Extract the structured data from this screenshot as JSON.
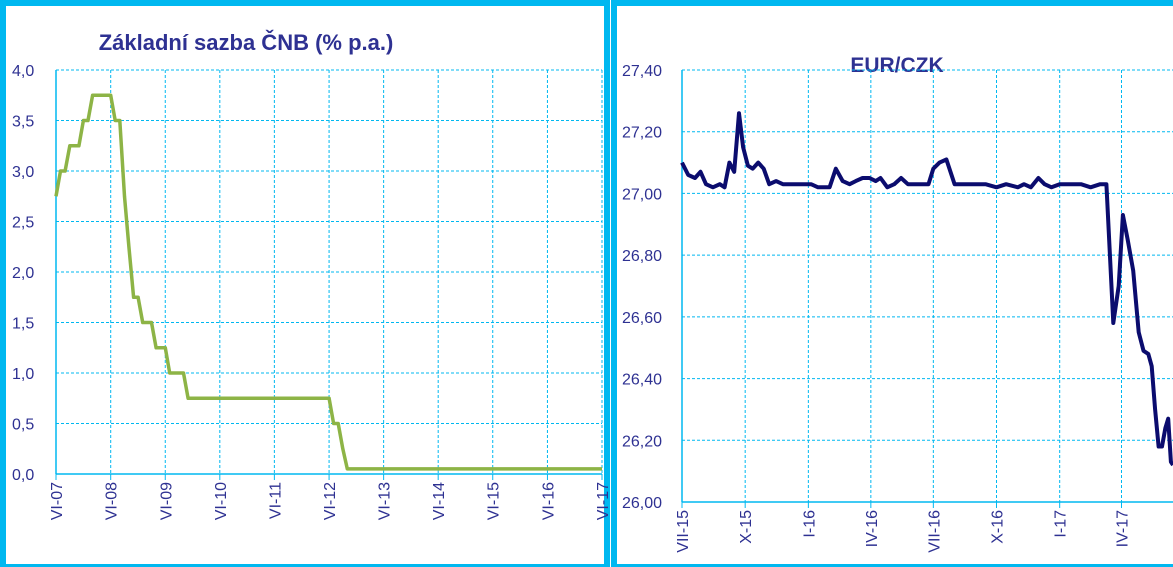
{
  "colors": {
    "border": "#00b8f0",
    "grid": "#00b8f0",
    "title": "#2e3192",
    "tick_text": "#2e3192",
    "series_left": "#8db446",
    "series_right": "#0b0c6e"
  },
  "chart_data": [
    {
      "type": "line",
      "title": "Základní sazba ČNB (% p.a.)",
      "xlabel": "",
      "ylabel": "",
      "ylim": [
        0,
        4
      ],
      "yticks": [
        0,
        0.5,
        1,
        1.5,
        2,
        2.5,
        3,
        3.5,
        4
      ],
      "ytick_labels": [
        "0,0",
        "0,5",
        "1,0",
        "1,5",
        "2,0",
        "2,5",
        "3,0",
        "3,5",
        "4,0"
      ],
      "xlim": [
        "2007-06",
        "2017-06"
      ],
      "xtick_dates": [
        "2007-06",
        "2008-06",
        "2009-06",
        "2010-06",
        "2011-06",
        "2012-06",
        "2013-06",
        "2014-06",
        "2015-06",
        "2016-06",
        "2017-06"
      ],
      "xtick_labels": [
        "VI-07",
        "VI-08",
        "VI-09",
        "VI-10",
        "VI-11",
        "VI-12",
        "VI-13",
        "VI-14",
        "VI-15",
        "VI-16",
        "VI-17"
      ],
      "grid": true,
      "series": [
        {
          "x": [
            "2007-06",
            "2007-07",
            "2007-08",
            "2007-09",
            "2007-10",
            "2007-11",
            "2007-12",
            "2008-01",
            "2008-02",
            "2008-03",
            "2008-04",
            "2008-05",
            "2008-06",
            "2008-07",
            "2008-08",
            "2008-09",
            "2008-10",
            "2008-11",
            "2008-12",
            "2009-01",
            "2009-02",
            "2009-03",
            "2009-04",
            "2009-05",
            "2009-06",
            "2009-07",
            "2009-08",
            "2009-09",
            "2009-10",
            "2009-11",
            "2009-12",
            "2010-01",
            "2010-02",
            "2010-03",
            "2010-04",
            "2010-05",
            "2010-06",
            "2011-06",
            "2012-06",
            "2012-07",
            "2012-08",
            "2012-09",
            "2012-10",
            "2012-11",
            "2013-06",
            "2014-06",
            "2015-06",
            "2016-06",
            "2017-06"
          ],
          "values": [
            2.75,
            3.0,
            3.0,
            3.25,
            3.25,
            3.25,
            3.5,
            3.5,
            3.75,
            3.75,
            3.75,
            3.75,
            3.75,
            3.5,
            3.5,
            2.75,
            2.25,
            1.75,
            1.75,
            1.5,
            1.5,
            1.5,
            1.25,
            1.25,
            1.25,
            1.0,
            1.0,
            1.0,
            1.0,
            0.75,
            0.75,
            0.75,
            0.75,
            0.75,
            0.75,
            0.75,
            0.75,
            0.75,
            0.75,
            0.5,
            0.5,
            0.25,
            0.05,
            0.05,
            0.05,
            0.05,
            0.05,
            0.05,
            0.05
          ]
        }
      ]
    },
    {
      "type": "line",
      "title": "EUR/CZK",
      "xlabel": "",
      "ylabel": "",
      "ylim": [
        26.0,
        27.4
      ],
      "yticks": [
        26.0,
        26.2,
        26.4,
        26.6,
        26.8,
        27.0,
        27.2,
        27.4
      ],
      "ytick_labels": [
        "26,00",
        "26,20",
        "26,40",
        "26,60",
        "26,80",
        "27,00",
        "27,20",
        "27,40"
      ],
      "xlim": [
        "2015-07-01",
        "2017-06-15"
      ],
      "xtick_dates": [
        "2015-07-01",
        "2015-10-01",
        "2016-01-01",
        "2016-04-01",
        "2016-07-01",
        "2016-10-01",
        "2017-01-01",
        "2017-04-01"
      ],
      "xtick_labels": [
        "VII-15",
        "X-15",
        "I-16",
        "IV-16",
        "VII-16",
        "X-16",
        "I-17",
        "IV-17"
      ],
      "grid": true,
      "series": [
        {
          "x": [
            "2015-07-01",
            "2015-07-10",
            "2015-07-20",
            "2015-07-28",
            "2015-08-05",
            "2015-08-15",
            "2015-08-25",
            "2015-09-01",
            "2015-09-08",
            "2015-09-15",
            "2015-09-22",
            "2015-09-28",
            "2015-10-05",
            "2015-10-12",
            "2015-10-20",
            "2015-10-28",
            "2015-11-05",
            "2015-11-15",
            "2015-11-25",
            "2015-12-05",
            "2015-12-15",
            "2015-12-25",
            "2016-01-05",
            "2016-01-15",
            "2016-01-25",
            "2016-02-01",
            "2016-02-10",
            "2016-02-20",
            "2016-03-01",
            "2016-03-10",
            "2016-03-20",
            "2016-03-30",
            "2016-04-08",
            "2016-04-15",
            "2016-04-25",
            "2016-05-05",
            "2016-05-15",
            "2016-05-25",
            "2016-06-05",
            "2016-06-15",
            "2016-06-24",
            "2016-07-01",
            "2016-07-10",
            "2016-07-20",
            "2016-08-01",
            "2016-08-10",
            "2016-08-20",
            "2016-09-01",
            "2016-09-15",
            "2016-10-01",
            "2016-10-15",
            "2016-11-01",
            "2016-11-10",
            "2016-11-20",
            "2016-12-01",
            "2016-12-10",
            "2016-12-20",
            "2017-01-01",
            "2017-01-15",
            "2017-02-01",
            "2017-02-15",
            "2017-03-01",
            "2017-03-10",
            "2017-03-20",
            "2017-03-28",
            "2017-04-03",
            "2017-04-10",
            "2017-04-18",
            "2017-04-26",
            "2017-05-03",
            "2017-05-10",
            "2017-05-15",
            "2017-05-20",
            "2017-05-25",
            "2017-05-30",
            "2017-06-04",
            "2017-06-08",
            "2017-06-12",
            "2017-06-15"
          ],
          "values": [
            27.1,
            27.06,
            27.05,
            27.07,
            27.03,
            27.02,
            27.03,
            27.02,
            27.1,
            27.07,
            27.26,
            27.15,
            27.09,
            27.08,
            27.1,
            27.08,
            27.03,
            27.04,
            27.03,
            27.03,
            27.03,
            27.03,
            27.03,
            27.02,
            27.02,
            27.02,
            27.08,
            27.04,
            27.03,
            27.04,
            27.05,
            27.05,
            27.04,
            27.05,
            27.02,
            27.03,
            27.05,
            27.03,
            27.03,
            27.03,
            27.03,
            27.08,
            27.1,
            27.11,
            27.03,
            27.03,
            27.03,
            27.03,
            27.03,
            27.02,
            27.03,
            27.02,
            27.03,
            27.02,
            27.05,
            27.03,
            27.02,
            27.03,
            27.03,
            27.03,
            27.02,
            27.03,
            27.03,
            26.58,
            26.7,
            26.93,
            26.85,
            26.75,
            26.55,
            26.49,
            26.48,
            26.44,
            26.3,
            26.18,
            26.18,
            26.24,
            26.27,
            26.13,
            26.12
          ]
        }
      ]
    }
  ]
}
